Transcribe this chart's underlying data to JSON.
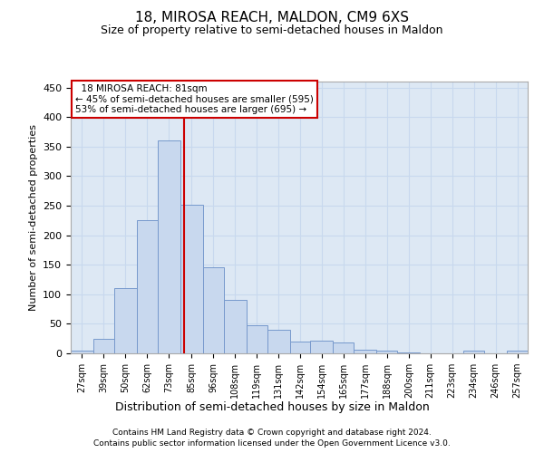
{
  "title": "18, MIROSA REACH, MALDON, CM9 6XS",
  "subtitle": "Size of property relative to semi-detached houses in Maldon",
  "xlabel": "Distribution of semi-detached houses by size in Maldon",
  "ylabel": "Number of semi-detached properties",
  "footer1": "Contains HM Land Registry data © Crown copyright and database right 2024.",
  "footer2": "Contains public sector information licensed under the Open Government Licence v3.0.",
  "property_label": "18 MIROSA REACH: 81sqm",
  "smaller_text": "← 45% of semi-detached houses are smaller (595)",
  "larger_text": "53% of semi-detached houses are larger (695) →",
  "property_size": 81,
  "bar_color": "#c8d8ee",
  "bar_edge_color": "#7799cc",
  "vline_color": "#cc0000",
  "annotation_box_color": "#cc0000",
  "grid_color": "#c8d8ee",
  "background_color": "#dde8f4",
  "categories": [
    "27sqm",
    "39sqm",
    "50sqm",
    "62sqm",
    "73sqm",
    "85sqm",
    "96sqm",
    "108sqm",
    "119sqm",
    "131sqm",
    "142sqm",
    "154sqm",
    "165sqm",
    "177sqm",
    "188sqm",
    "200sqm",
    "211sqm",
    "223sqm",
    "234sqm",
    "246sqm",
    "257sqm"
  ],
  "bin_edges": [
    21,
    33,
    44,
    56,
    67,
    79,
    91,
    102,
    114,
    125,
    137,
    148,
    160,
    171,
    183,
    194,
    206,
    217,
    229,
    240,
    252,
    263
  ],
  "values": [
    5,
    25,
    110,
    225,
    360,
    252,
    145,
    90,
    47,
    40,
    20,
    22,
    18,
    6,
    5,
    1,
    0,
    0,
    4,
    0,
    4
  ],
  "ylim": [
    0,
    460
  ],
  "yticks": [
    0,
    50,
    100,
    150,
    200,
    250,
    300,
    350,
    400,
    450
  ]
}
